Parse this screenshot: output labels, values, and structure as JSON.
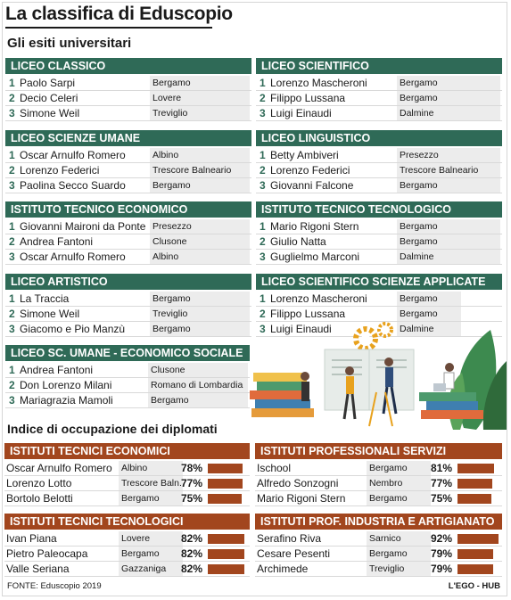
{
  "title": "La classifica di Eduscopio",
  "subtitle": "Gli esiti universitari",
  "ranking_sections": [
    {
      "title": "LICEO CLASSICO",
      "rows": [
        {
          "rank": "1",
          "name": "Paolo Sarpi",
          "city": "Bergamo"
        },
        {
          "rank": "2",
          "name": "Decio Celeri",
          "city": "Lovere"
        },
        {
          "rank": "3",
          "name": "Simone Weil",
          "city": "Treviglio"
        }
      ]
    },
    {
      "title": "LICEO SCIENTIFICO",
      "rows": [
        {
          "rank": "1",
          "name": "Lorenzo Mascheroni",
          "city": "Bergamo"
        },
        {
          "rank": "2",
          "name": "Filippo Lussana",
          "city": "Bergamo"
        },
        {
          "rank": "3",
          "name": "Luigi Einaudi",
          "city": "Dalmine"
        }
      ]
    },
    {
      "title": "LICEO SCIENZE UMANE",
      "rows": [
        {
          "rank": "1",
          "name": "Oscar Arnulfo Romero",
          "city": "Albino"
        },
        {
          "rank": "2",
          "name": "Lorenzo Federici",
          "city": "Trescore Balneario"
        },
        {
          "rank": "3",
          "name": "Paolina Secco Suardo",
          "city": "Bergamo"
        }
      ]
    },
    {
      "title": "LICEO LINGUISTICO",
      "rows": [
        {
          "rank": "1",
          "name": "Betty Ambiveri",
          "city": "Presezzo"
        },
        {
          "rank": "2",
          "name": "Lorenzo Federici",
          "city": "Trescore Balneario"
        },
        {
          "rank": "3",
          "name": "Giovanni Falcone",
          "city": "Bergamo"
        }
      ]
    },
    {
      "title": "ISTITUTO TECNICO ECONOMICO",
      "rows": [
        {
          "rank": "1",
          "name": "Giovanni Maironi da Ponte",
          "city": "Presezzo"
        },
        {
          "rank": "2",
          "name": "Andrea Fantoni",
          "city": "Clusone"
        },
        {
          "rank": "3",
          "name": "Oscar Arnulfo Romero",
          "city": "Albino"
        }
      ]
    },
    {
      "title": "ISTITUTO TECNICO TECNOLOGICO",
      "rows": [
        {
          "rank": "1",
          "name": "Mario Rigoni Stern",
          "city": "Bergamo"
        },
        {
          "rank": "2",
          "name": "Giulio Natta",
          "city": "Bergamo"
        },
        {
          "rank": "3",
          "name": "Guglielmo Marconi",
          "city": "Dalmine"
        }
      ]
    },
    {
      "title": "LICEO ARTISTICO",
      "rows": [
        {
          "rank": "1",
          "name": "La Traccia",
          "city": "Bergamo"
        },
        {
          "rank": "2",
          "name": "Simone Weil",
          "city": "Treviglio"
        },
        {
          "rank": "3",
          "name": "Giacomo e Pio Manzù",
          "city": "Bergamo"
        }
      ]
    },
    {
      "title": "LICEO SCIENTIFICO SCIENZE APPLICATE",
      "rows": [
        {
          "rank": "1",
          "name": "Lorenzo Mascheroni",
          "city": "Bergamo"
        },
        {
          "rank": "2",
          "name": "Filippo Lussana",
          "city": "Bergamo"
        },
        {
          "rank": "3",
          "name": "Luigi Einaudi",
          "city": "Dalmine"
        }
      ]
    },
    {
      "title": "LICEO SC. UMANE - ECONOMICO SOCIALE",
      "rows": [
        {
          "rank": "1",
          "name": "Andrea Fantoni",
          "city": "Clusone"
        },
        {
          "rank": "2",
          "name": "Don Lorenzo Milani",
          "city": "Romano di Lombardia"
        },
        {
          "rank": "3",
          "name": "Mariagrazia Mamoli",
          "city": "Bergamo"
        }
      ]
    }
  ],
  "employment_title": "Indice di occupazione dei diplomati",
  "employment_sections": [
    {
      "title": "ISTITUTI TECNICI ECONOMICI",
      "rows": [
        {
          "name": "Oscar Arnulfo Romero",
          "city": "Albino",
          "pct": "78%",
          "value": 78
        },
        {
          "name": "Lorenzo Lotto",
          "city": "Trescore Baln.",
          "pct": "77%",
          "value": 77
        },
        {
          "name": "Bortolo Belotti",
          "city": "Bergamo",
          "pct": "75%",
          "value": 75
        }
      ]
    },
    {
      "title": "ISTITUTI PROFESSIONALI SERVIZI",
      "rows": [
        {
          "name": "Ischool",
          "city": "Bergamo",
          "pct": "81%",
          "value": 81
        },
        {
          "name": "Alfredo Sonzogni",
          "city": "Nembro",
          "pct": "77%",
          "value": 77
        },
        {
          "name": "Mario Rigoni Stern",
          "city": "Bergamo",
          "pct": "75%",
          "value": 75
        }
      ]
    },
    {
      "title": "ISTITUTI TECNICI TECNOLOGICI",
      "rows": [
        {
          "name": "Ivan Piana",
          "city": "Lovere",
          "pct": "82%",
          "value": 82
        },
        {
          "name": "Pietro Paleocapa",
          "city": "Bergamo",
          "pct": "82%",
          "value": 82
        },
        {
          "name": "Valle Seriana",
          "city": "Gazzaniga",
          "pct": "82%",
          "value": 82
        }
      ]
    },
    {
      "title": "ISTITUTI PROF. INDUSTRIA E ARTIGIANATO",
      "rows": [
        {
          "name": "Serafino Riva",
          "city": "Sarnico",
          "pct": "92%",
          "value": 92
        },
        {
          "name": "Cesare Pesenti",
          "city": "Bergamo",
          "pct": "79%",
          "value": 79
        },
        {
          "name": "Archimede",
          "city": "Treviglio",
          "pct": "79%",
          "value": 79
        }
      ]
    }
  ],
  "footer_source": "FONTE: Eduscopio 2019",
  "footer_credit": "L'EGO - HUB",
  "colors": {
    "green": "#2f6a57",
    "brown": "#a2461e"
  },
  "illustration": "students-with-books-and-gears-illustration"
}
